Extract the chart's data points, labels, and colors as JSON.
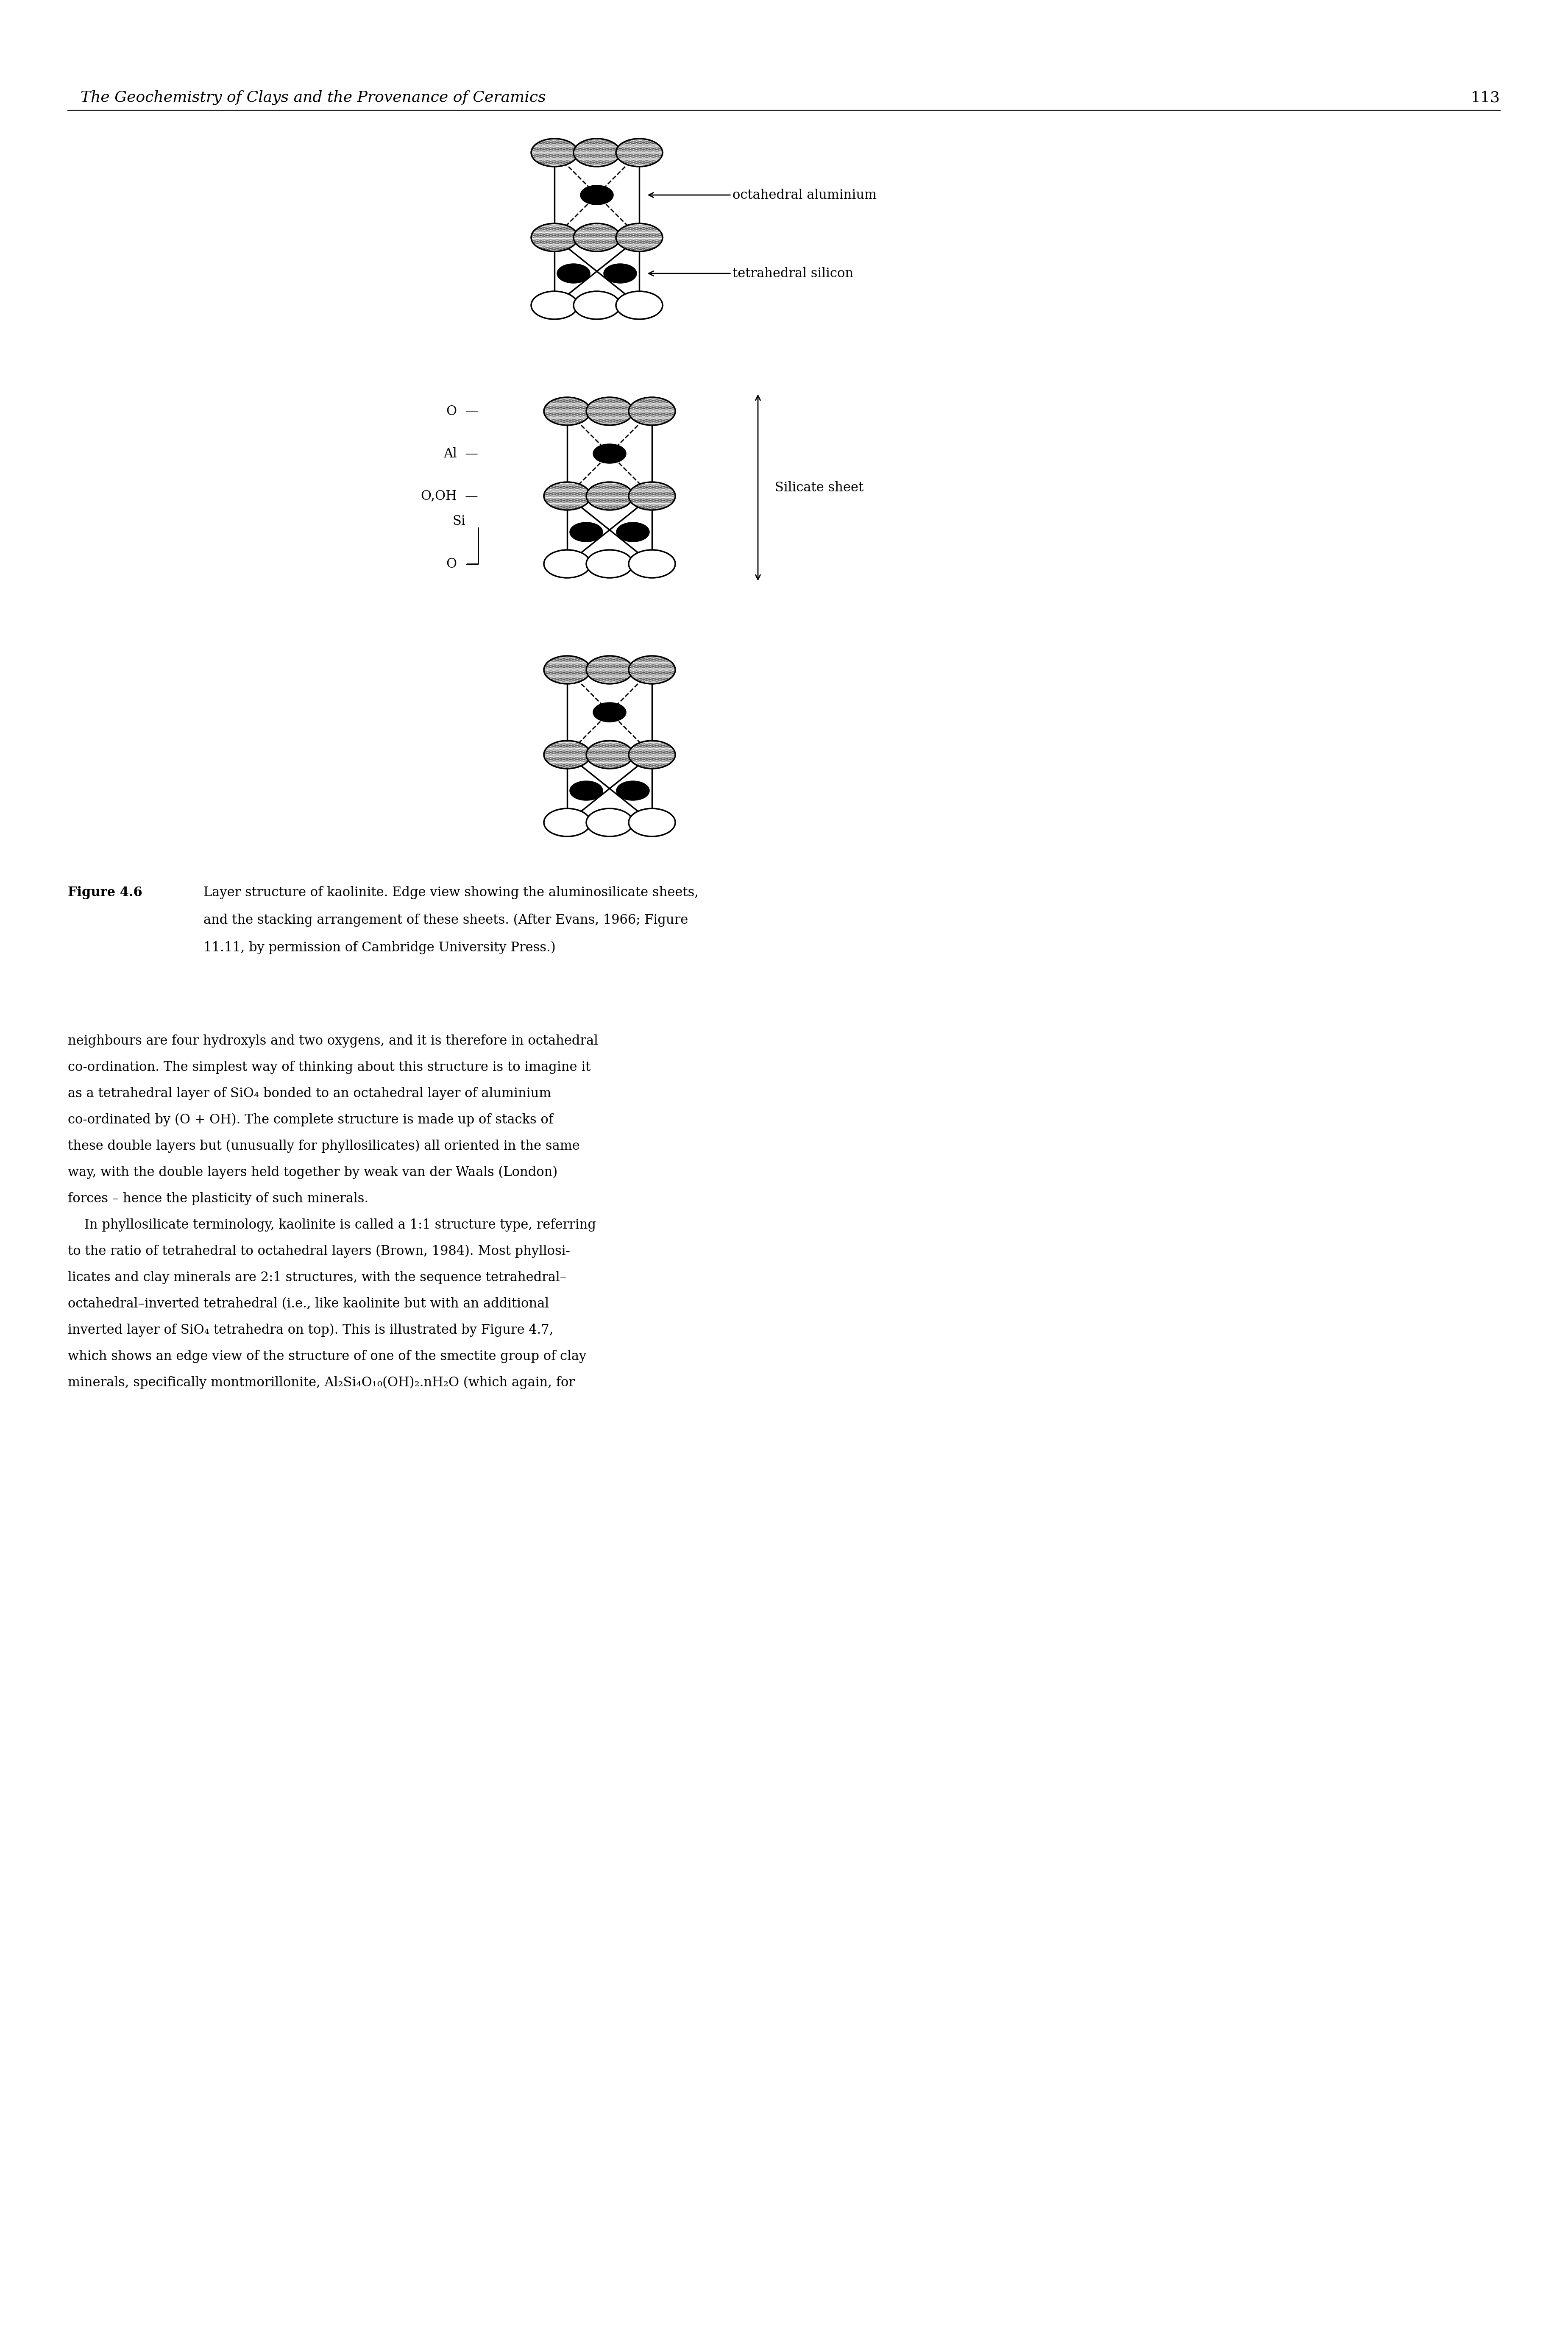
{
  "title_italic": "The Geochemistry of Clays and the Provenance of Ceramics",
  "page_number": "113",
  "figure_label": "Figure 4.6",
  "background_color": "#ffffff",
  "body_text_lines": [
    {
      "text": "neighbours are four hydroxyls and two oxygens, and it is therefore in ",
      "suffix": "octahedral",
      "suffix_italic": true,
      "rest": ""
    },
    {
      "text": "co-ordination",
      "prefix_italic": true,
      "rest": ". The simplest way of thinking about this structure is to imagine it"
    },
    {
      "text": "as a tetrahedral layer of SiO",
      "sub4": true,
      "rest": " bonded to an octahedral layer of aluminium"
    },
    {
      "text": "co-ordinated by (O + OH). The complete structure is made up of stacks of",
      "sub4": false
    },
    {
      "text": "these double layers but (unusually for phyllosilicates) all oriented in the same"
    },
    {
      "text": "way, with the double layers held together by weak van der Waals (London)"
    },
    {
      "text": "forces – hence the plasticity of such minerals."
    },
    {
      "text": "    In phyllosilicate terminology, kaolinite is called a 1:1 structure type, referring"
    },
    {
      "text": "to the ratio of tetrahedral to octahedral layers (Brown, 1984). Most phyllosi-"
    },
    {
      "text": "licates and clay minerals are 2:1 structures, with the sequence tetrahedral–"
    },
    {
      "text": "octahedral–inverted tetrahedral (",
      "ie_italic": true,
      "rest": "i.e.",
      "rest2": ", like kaolinite but with an additional"
    },
    {
      "text": "inverted layer of SiO",
      "sub4b": true,
      "rest": " tetrahedra on top). This is illustrated by Figure 4.7,"
    },
    {
      "text": "which shows an edge view of the structure of one of the ",
      "smectite_italic": true,
      "rest": "smectite",
      "rest2": " group of clay"
    },
    {
      "text": "minerals, specifically ",
      "montm_italic": true,
      "rest": "montmorillonite",
      "rest2": ", Al₂Si₄O₁₀(OH)₂.nH₂O (which again, for"
    }
  ]
}
